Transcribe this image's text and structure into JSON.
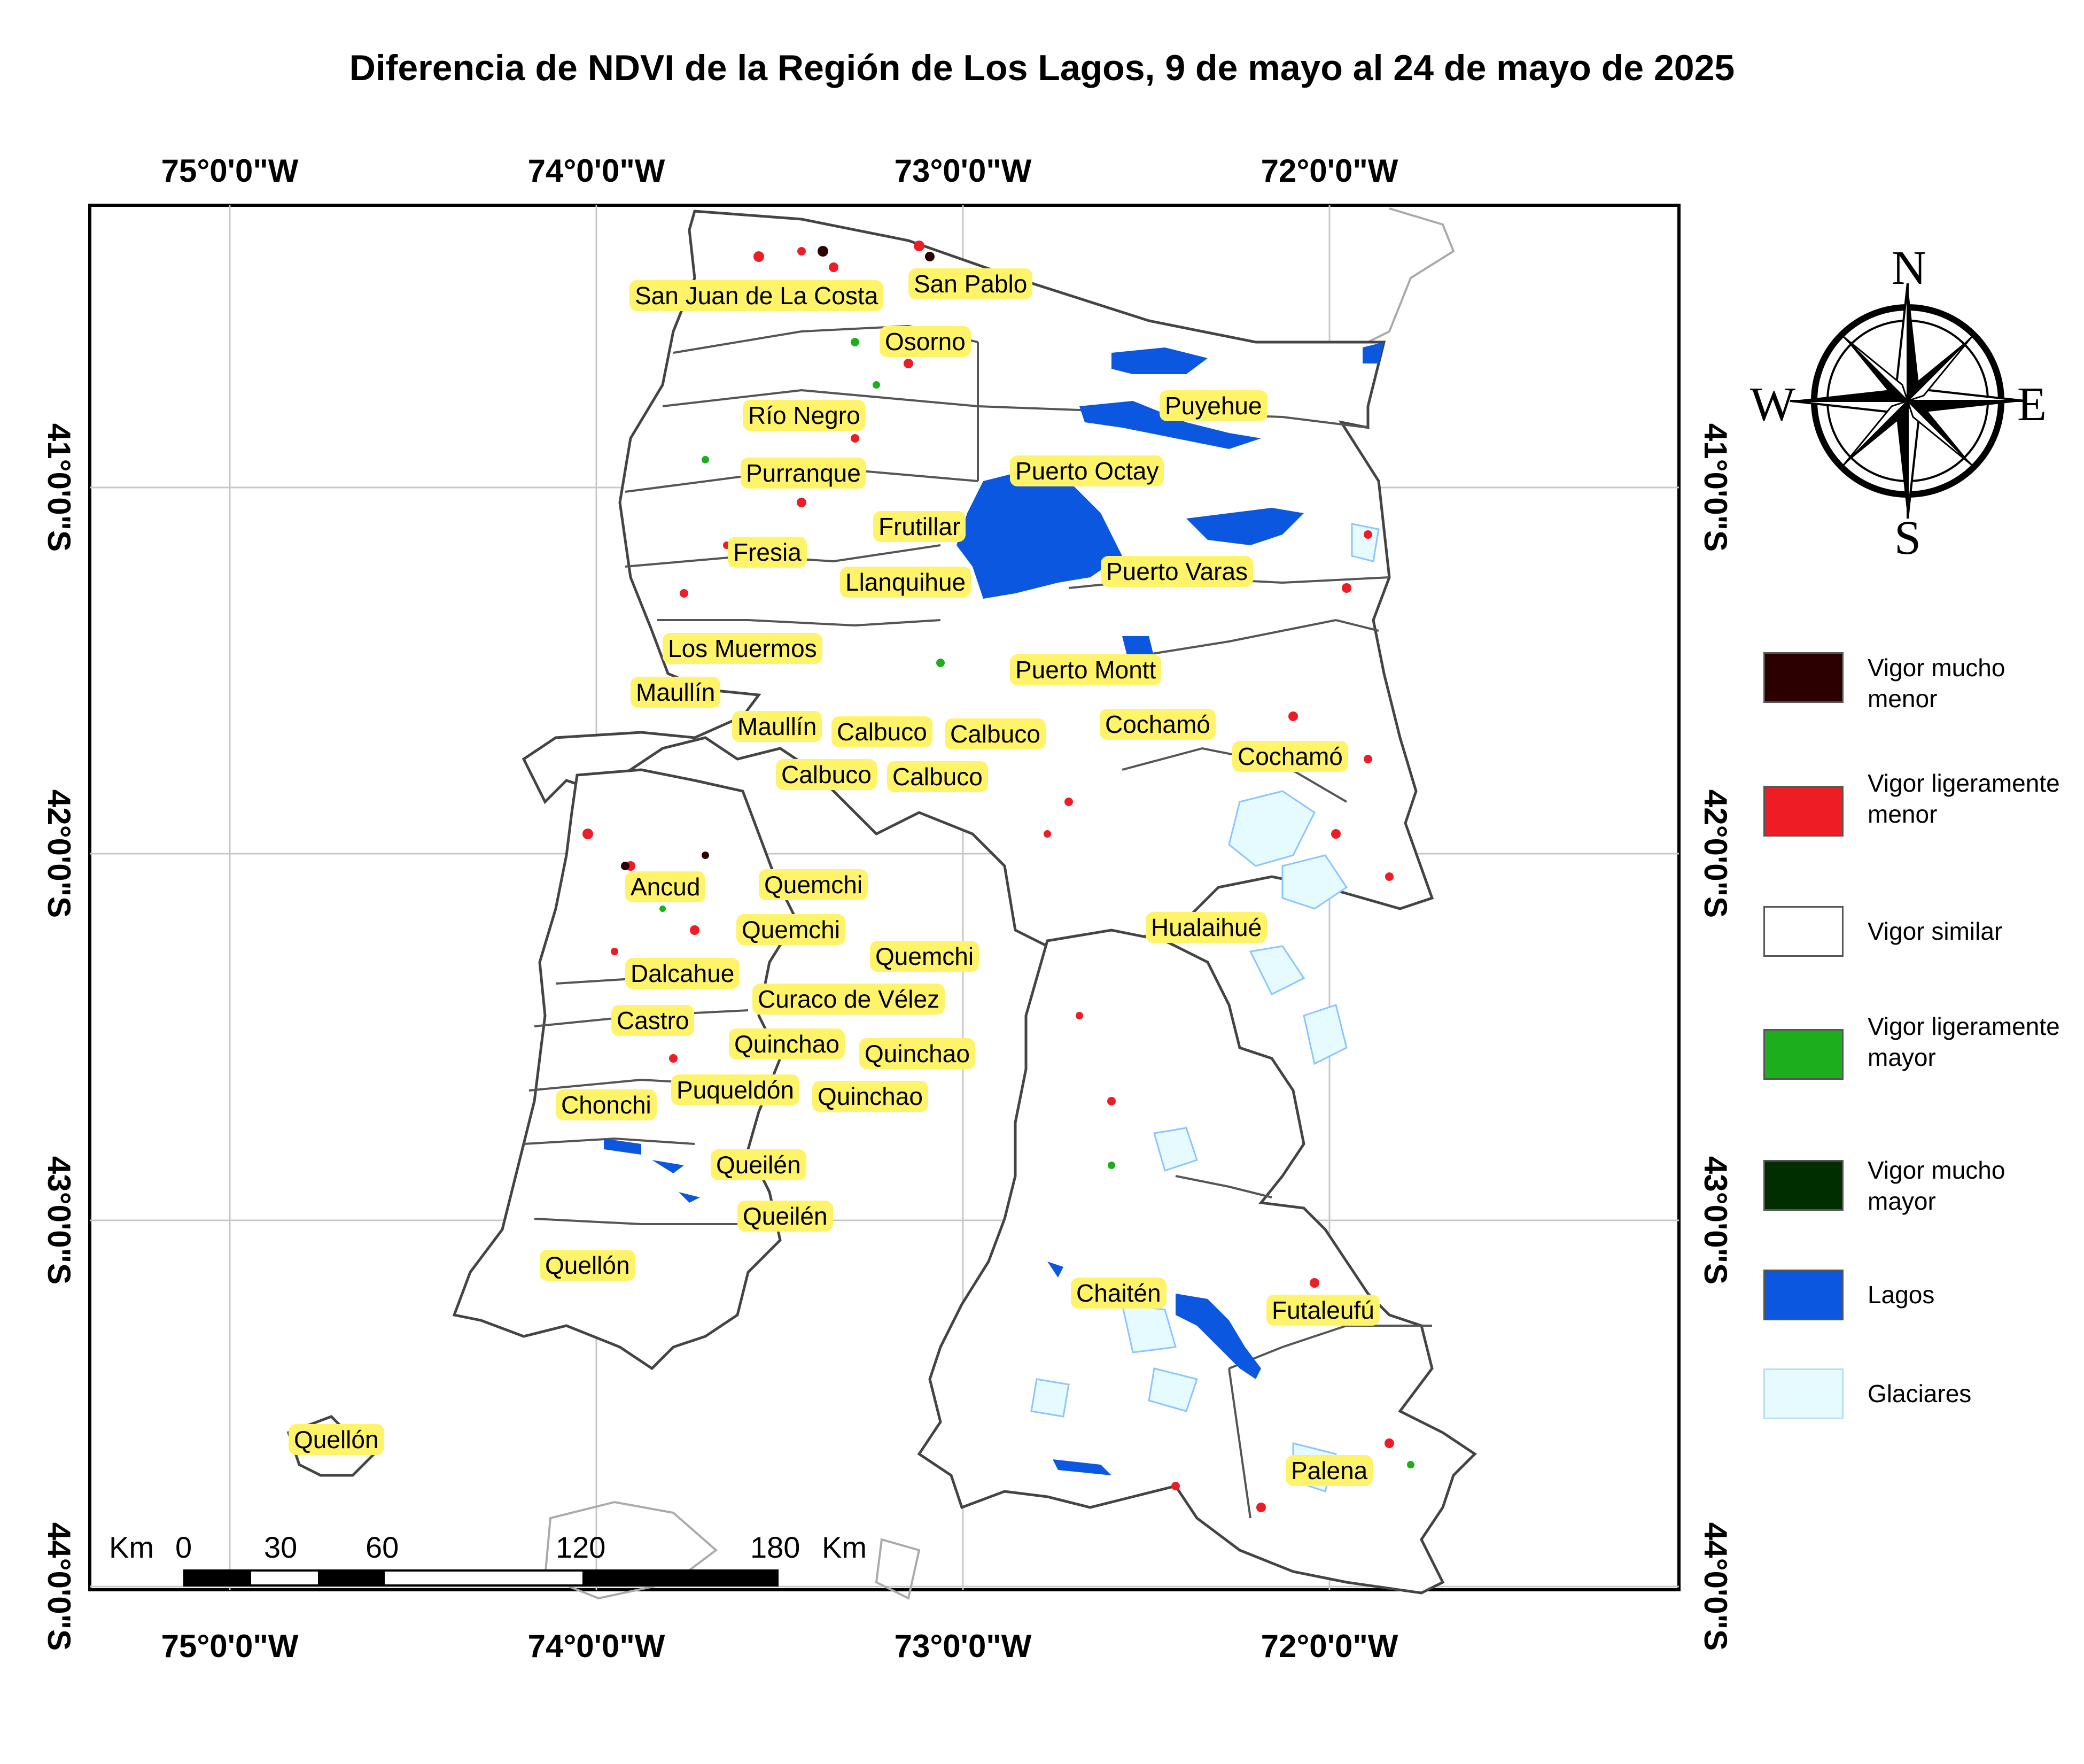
{
  "title": "Diferencia de NDVI de la Región de Los Lagos, 9 de mayo al 24 de mayo de 2025",
  "longitudes": [
    "75°0'0\"W",
    "74°0'0\"W",
    "73°0'0\"W",
    "72°0'0\"W"
  ],
  "latitudes": [
    "41°0'0\"S",
    "42°0'0\"S",
    "43°0'0\"S",
    "44°0'0\"S"
  ],
  "places": [
    "San Juan de La Costa",
    "San Pablo",
    "Osorno",
    "Puyehue",
    "Río Negro",
    "Purranque",
    "Puerto Octay",
    "Frutillar",
    "Fresia",
    "Llanquihue",
    "Puerto Varas",
    "Los Muermos",
    "Puerto Montt",
    "Maullín",
    "Maullín",
    "Calbuco",
    "Calbuco",
    "Cochamó",
    "Calbuco",
    "Calbuco",
    "Cochamó",
    "Ancud",
    "Quemchi",
    "Quemchi",
    "Hualaihué",
    "Quemchi",
    "Dalcahue",
    "Curaco de Vélez",
    "Castro",
    "Quinchao",
    "Quinchao",
    "Puqueldón",
    "Quinchao",
    "Chonchi",
    "Queilén",
    "Queilén",
    "Quellón",
    "Chaitén",
    "Futaleufú",
    "Palena",
    "Quellón"
  ],
  "compass": {
    "n": "N",
    "s": "S",
    "e": "E",
    "w": "W"
  },
  "legend": [
    {
      "label": "Vigor mucho menor",
      "color": "#2d0000"
    },
    {
      "label": "Vigor ligeramente menor",
      "color": "#ee1c25"
    },
    {
      "label": "Vigor similar",
      "color": "#ffffff"
    },
    {
      "label": "Vigor ligeramente mayor",
      "color": "#1dae1d"
    },
    {
      "label": "Vigor mucho mayor",
      "color": "#002e00"
    },
    {
      "label": "Lagos",
      "color": "#0b57e0"
    },
    {
      "label": "Glaciares",
      "color": "#e6fbff"
    }
  ],
  "scale_bar": {
    "unit": "Km",
    "ticks": [
      "0",
      "30",
      "60",
      "120",
      "180"
    ]
  }
}
